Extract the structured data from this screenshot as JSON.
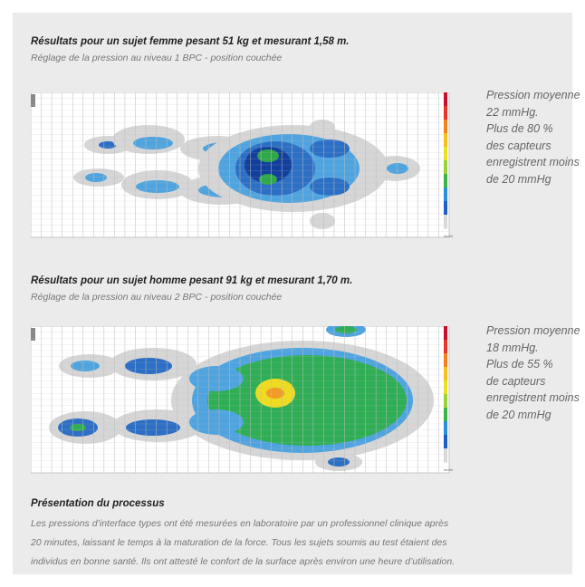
{
  "section1": {
    "title": "Résultats pour un sujet femme pesant 51 kg et mesurant 1,58 m.",
    "subtitle": "Réglage de la pression au niveau 1 BPC - position couchée",
    "side_lines": [
      "Pression moyenne",
      "22 mmHg.",
      "Plus de 80 %",
      "des capteurs",
      "enregistrent moins",
      "de 20 mmHg"
    ],
    "map_colors": {
      "low": "#d6d6d6",
      "light": "#4fa4e0",
      "mid": "#2c6fc4",
      "dark": "#123f9c",
      "green": "#2ea84a"
    }
  },
  "section2": {
    "title": "Résultats pour un sujet homme pesant 91 kg et mesurant 1,70 m.",
    "subtitle": "Réglage de la pression au niveau 2 BPC - position couchée",
    "side_lines": [
      "Pression moyenne",
      "18 mmHg.",
      "Plus de 55 %",
      "de capteurs",
      "enregistrent moins",
      "de 20 mmHg"
    ],
    "map_colors": {
      "low": "#d6d6d6",
      "light": "#4fa4e0",
      "mid": "#2c6fc4",
      "green": "#2fae55",
      "yellow": "#f0dc1e"
    }
  },
  "legend": {
    "unit": "mmHg",
    "colors": [
      "#c8102e",
      "#e8342a",
      "#f2821d",
      "#f4c21a",
      "#e9e21e",
      "#9bd13a",
      "#3bb24a",
      "#2b8fd6",
      "#1f5fbf",
      "#d9d9d9"
    ]
  },
  "process": {
    "title": "Présentation du processus",
    "lines": [
      "Les pressions d’interface types ont été mesurées en laboratoire par un professionnel clinique après",
      "20 minutes, laissant le temps à la maturation de la force. Tous les sujets soumis au test étaient des",
      "individus en bonne santé. Ils ont attesté le confort de la surface après environ une heure d’utilisation."
    ]
  }
}
